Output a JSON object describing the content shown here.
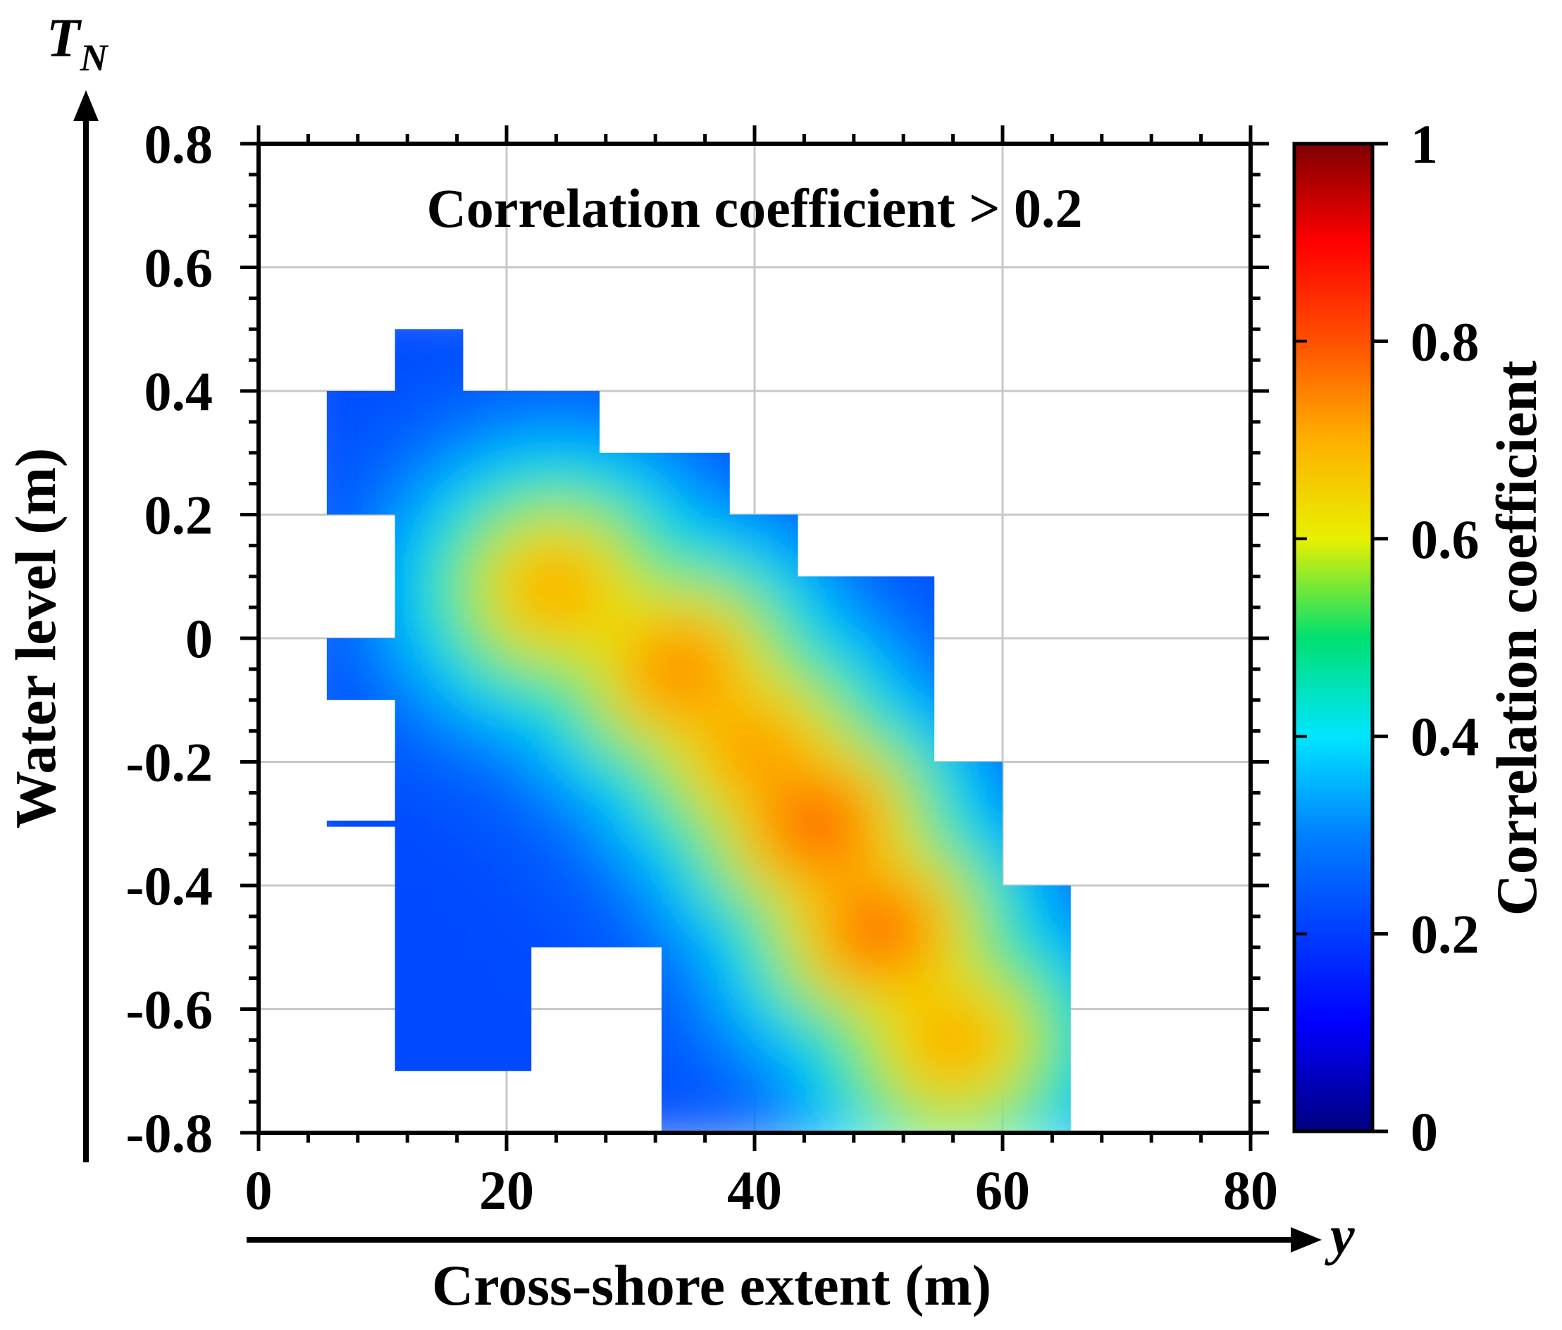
{
  "chart_data": {
    "type": "heatmap",
    "annotation": "Correlation coefficient > 0.2",
    "xlabel": "Cross-shore extent (m)",
    "ylabel": "Water level (m)",
    "x_axis_name": "y",
    "y_axis_name": "T",
    "y_axis_name_sub": "N",
    "xlim": [
      0,
      80
    ],
    "ylim": [
      -0.8,
      0.8
    ],
    "x_ticks": [
      0,
      20,
      40,
      60,
      80
    ],
    "x_tick_labels": [
      "0",
      "20",
      "40",
      "60",
      "80"
    ],
    "y_ticks": [
      0.8,
      0.6,
      0.4,
      0.2,
      0,
      -0.2,
      -0.4,
      -0.6,
      -0.8
    ],
    "y_tick_labels": [
      "0.8",
      "0.6",
      "0.4",
      "0.2",
      "0",
      "-0.2",
      "-0.4",
      "-0.6",
      "-0.8"
    ],
    "grid": true,
    "colorbar": {
      "label": "Correlation coefficient",
      "range": [
        0,
        1
      ],
      "ticks": [
        1,
        0.8,
        0.6,
        0.4,
        0.2,
        0
      ],
      "tick_labels": [
        "1",
        "0.8",
        "0.6",
        "0.4",
        "0.2",
        "0"
      ],
      "colormap": "jet"
    },
    "region_polygon": [
      [
        11,
        0.5
      ],
      [
        16.5,
        0.5
      ],
      [
        16.5,
        0.4
      ],
      [
        27.5,
        0.4
      ],
      [
        27.5,
        0.3
      ],
      [
        38,
        0.3
      ],
      [
        38,
        0.2
      ],
      [
        43.5,
        0.2
      ],
      [
        43.5,
        0.1
      ],
      [
        54.5,
        0.1
      ],
      [
        54.5,
        -0.2
      ],
      [
        60,
        -0.2
      ],
      [
        60,
        -0.4
      ],
      [
        65.5,
        -0.4
      ],
      [
        65.5,
        -0.8
      ],
      [
        32.5,
        -0.8
      ],
      [
        32.5,
        -0.5
      ],
      [
        22,
        -0.5
      ],
      [
        22,
        -0.7
      ],
      [
        11,
        -0.7
      ]
    ],
    "region_fragments": [
      [
        [
          5.5,
          0.4
        ],
        [
          11,
          0.4
        ],
        [
          11,
          0.2
        ],
        [
          5.5,
          0.2
        ]
      ],
      [
        [
          5.5,
          0.0
        ],
        [
          11,
          0.0
        ],
        [
          11,
          -0.1
        ],
        [
          5.5,
          -0.1
        ]
      ],
      [
        [
          5.5,
          -0.295
        ],
        [
          11,
          -0.295
        ],
        [
          11,
          -0.305
        ],
        [
          5.5,
          -0.305
        ]
      ]
    ],
    "field": {
      "base": 0.22,
      "hotspots": [
        {
          "x": 24,
          "y": 0.08,
          "value": 0.72
        },
        {
          "x": 34,
          "y": -0.05,
          "value": 0.76
        },
        {
          "x": 40,
          "y": -0.18,
          "value": 0.74
        },
        {
          "x": 45,
          "y": -0.3,
          "value": 0.8
        },
        {
          "x": 50,
          "y": -0.47,
          "value": 0.79
        },
        {
          "x": 56,
          "y": -0.65,
          "value": 0.72
        }
      ]
    }
  }
}
